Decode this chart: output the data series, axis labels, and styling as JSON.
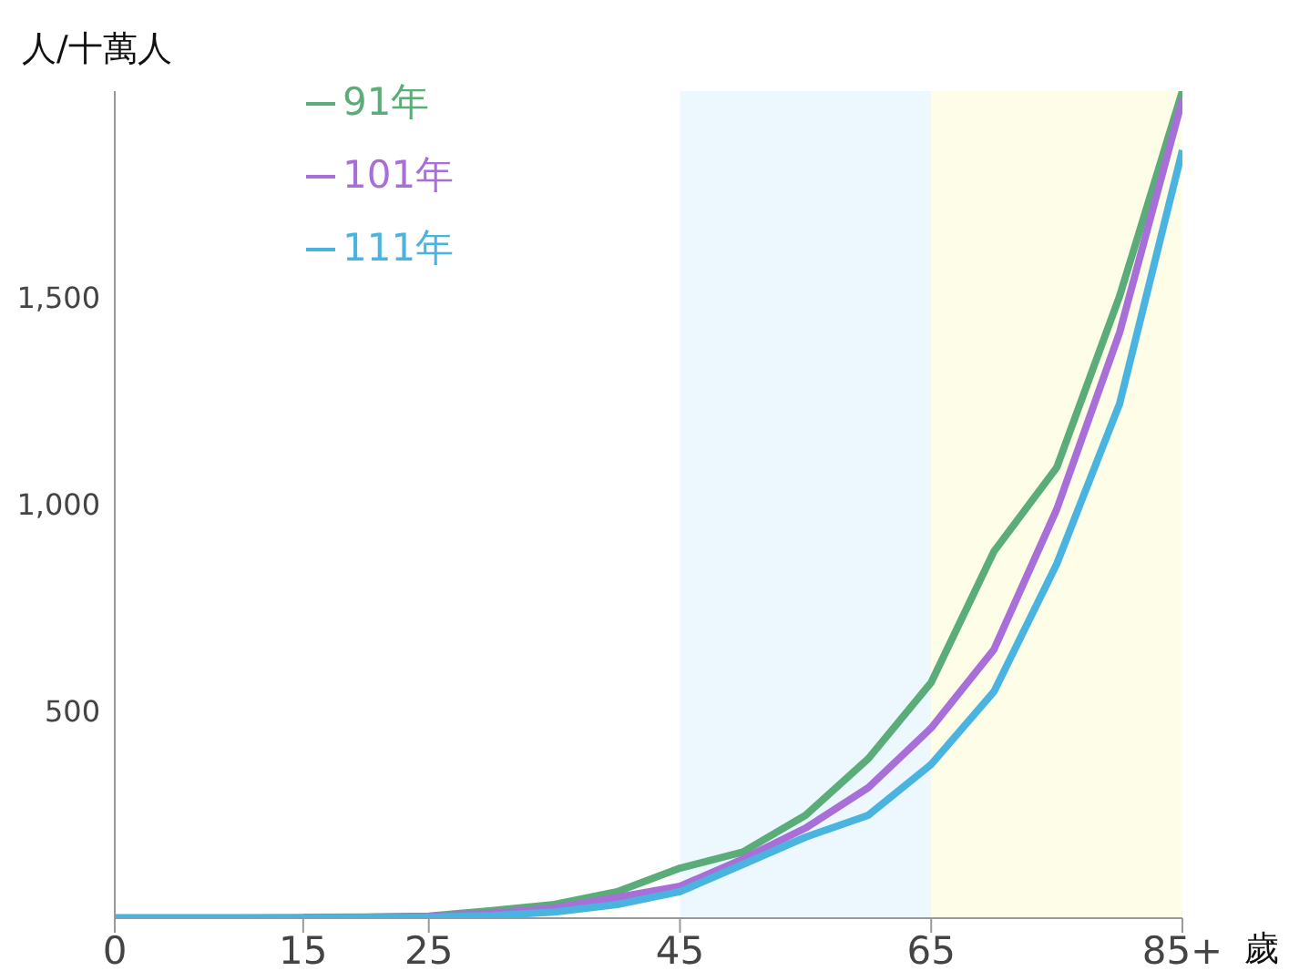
{
  "chart_data": {
    "type": "line",
    "ylabel": "人/十萬人",
    "xlabel": "歲",
    "x": [
      0,
      5,
      10,
      15,
      20,
      25,
      30,
      35,
      40,
      45,
      50,
      55,
      60,
      65,
      70,
      75,
      80,
      85
    ],
    "xlim": [
      0,
      85
    ],
    "xticks": [
      0,
      15,
      25,
      45,
      65,
      {
        "value": 85,
        "label": "85+"
      }
    ],
    "ylim": [
      0,
      2000
    ],
    "yticks": [
      {
        "value": 500,
        "label": "500"
      },
      {
        "value": 1000,
        "label": "1,000"
      },
      {
        "value": 1500,
        "label": "1,500"
      }
    ],
    "grid": false,
    "legend": "top left",
    "marker": "none",
    "line_style": "solid",
    "bands": [
      {
        "axis": "x",
        "from": 45,
        "to": 65,
        "color": "#edf7fe"
      },
      {
        "axis": "x",
        "from": 65,
        "to": 85,
        "color": "#fefde8"
      }
    ],
    "series": [
      {
        "name": "91年",
        "color": "#5aac78",
        "values": [
          null,
          null,
          null,
          2,
          3,
          5,
          18,
          33,
          64,
          121,
          160,
          249,
          386,
          570,
          887,
          1090,
          1504,
          2000
        ]
      },
      {
        "name": "101年",
        "color": "#a86fd9",
        "values": [
          1,
          1,
          1,
          1,
          2,
          4,
          12,
          25,
          50,
          77,
          143,
          218,
          316,
          460,
          650,
          989,
          1416,
          1980
        ]
      },
      {
        "name": "111年",
        "color": "#4ab4e0",
        "values": [
          0,
          0,
          0,
          1,
          1,
          2,
          6,
          15,
          33,
          64,
          130,
          196,
          249,
          372,
          548,
          857,
          1244,
          1857
        ]
      }
    ]
  }
}
